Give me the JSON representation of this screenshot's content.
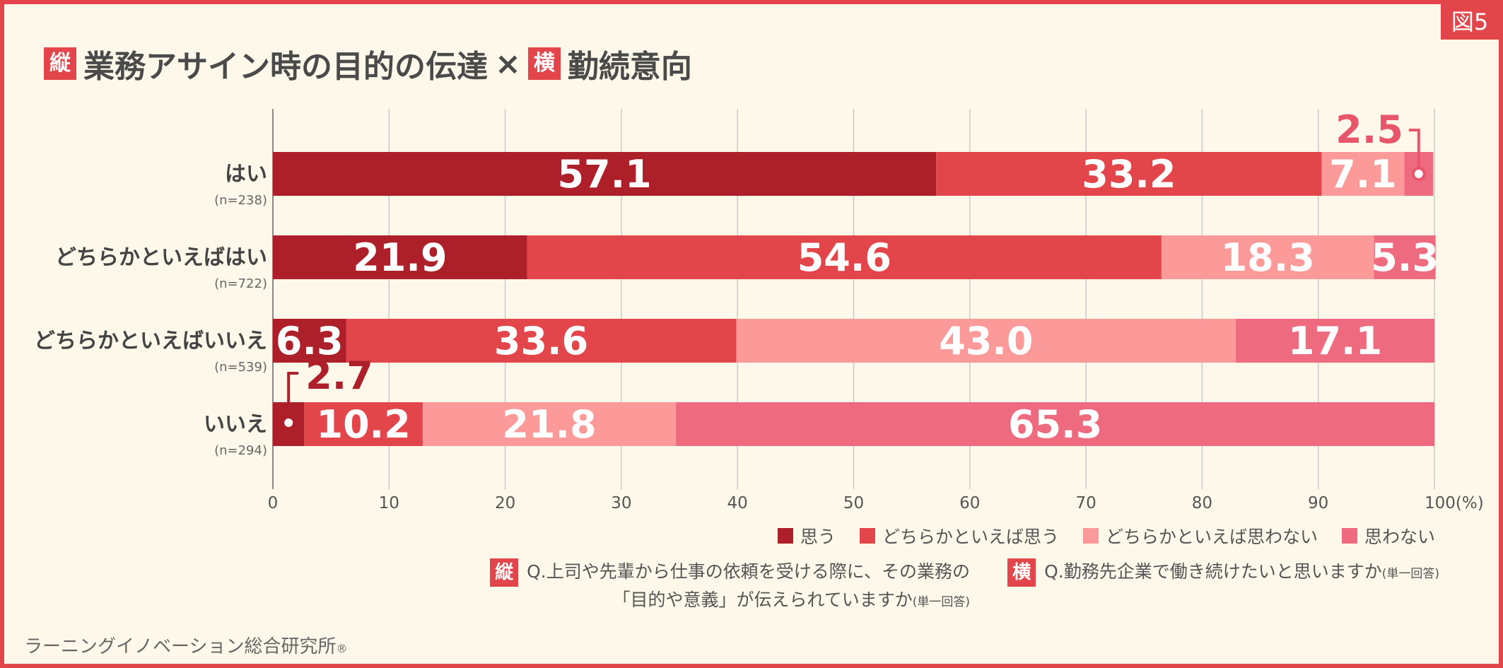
{
  "figure_label": "図5",
  "title": {
    "tag_vertical": "縦",
    "main": "業務アサイン時の目的の伝達",
    "times": "×",
    "tag_horizontal": "横",
    "sub": "勤続意向"
  },
  "chart_data": {
    "type": "bar",
    "orientation": "horizontal",
    "stacked": true,
    "xlim": [
      0,
      100
    ],
    "x_ticks": [
      "0",
      "10",
      "20",
      "30",
      "40",
      "50",
      "60",
      "70",
      "80",
      "90",
      "100(%)"
    ],
    "categories": [
      {
        "label": "はい",
        "n": "(n=238)"
      },
      {
        "label": "どちらかといえばはい",
        "n": "(n=722)"
      },
      {
        "label": "どちらかといえばいいえ",
        "n": "(n=539)"
      },
      {
        "label": "いいえ",
        "n": "(n=294)"
      }
    ],
    "series": [
      {
        "name": "思う",
        "color": "#ad1f29",
        "values": [
          57.1,
          21.9,
          6.3,
          2.7
        ],
        "labels": [
          "57.1",
          "21.9",
          "6.3",
          "2.7"
        ]
      },
      {
        "name": "どちらかといえば思う",
        "color": "#e2454a",
        "values": [
          33.2,
          54.6,
          33.6,
          10.2
        ],
        "labels": [
          "33.2",
          "54.6",
          "33.6",
          "10.2"
        ]
      },
      {
        "name": "どちらかといえば思わない",
        "color": "#fc9a99",
        "values": [
          7.1,
          18.3,
          43.0,
          21.8
        ],
        "labels": [
          "7.1",
          "18.3",
          "43.0",
          "21.8"
        ]
      },
      {
        "name": "思わない",
        "color": "#ee6a7f",
        "values": [
          2.5,
          5.3,
          17.1,
          65.3
        ],
        "labels": [
          "2.5",
          "5.3",
          "17.1",
          "65.3"
        ]
      }
    ]
  },
  "questions": {
    "vertical": {
      "tag": "縦",
      "line1": "Q.上司や先輩から仕事の依頼を受ける際に、その業務の",
      "line2": "「目的や意義」が伝えられていますか",
      "note": "(単一回答)"
    },
    "horizontal": {
      "tag": "横",
      "line1": "Q.勤務先企業で働き続けたいと思いますか",
      "note": "(単一回答)"
    }
  },
  "footer": {
    "text": "ラーニングイノベーション総合研究所",
    "mark": "®"
  }
}
